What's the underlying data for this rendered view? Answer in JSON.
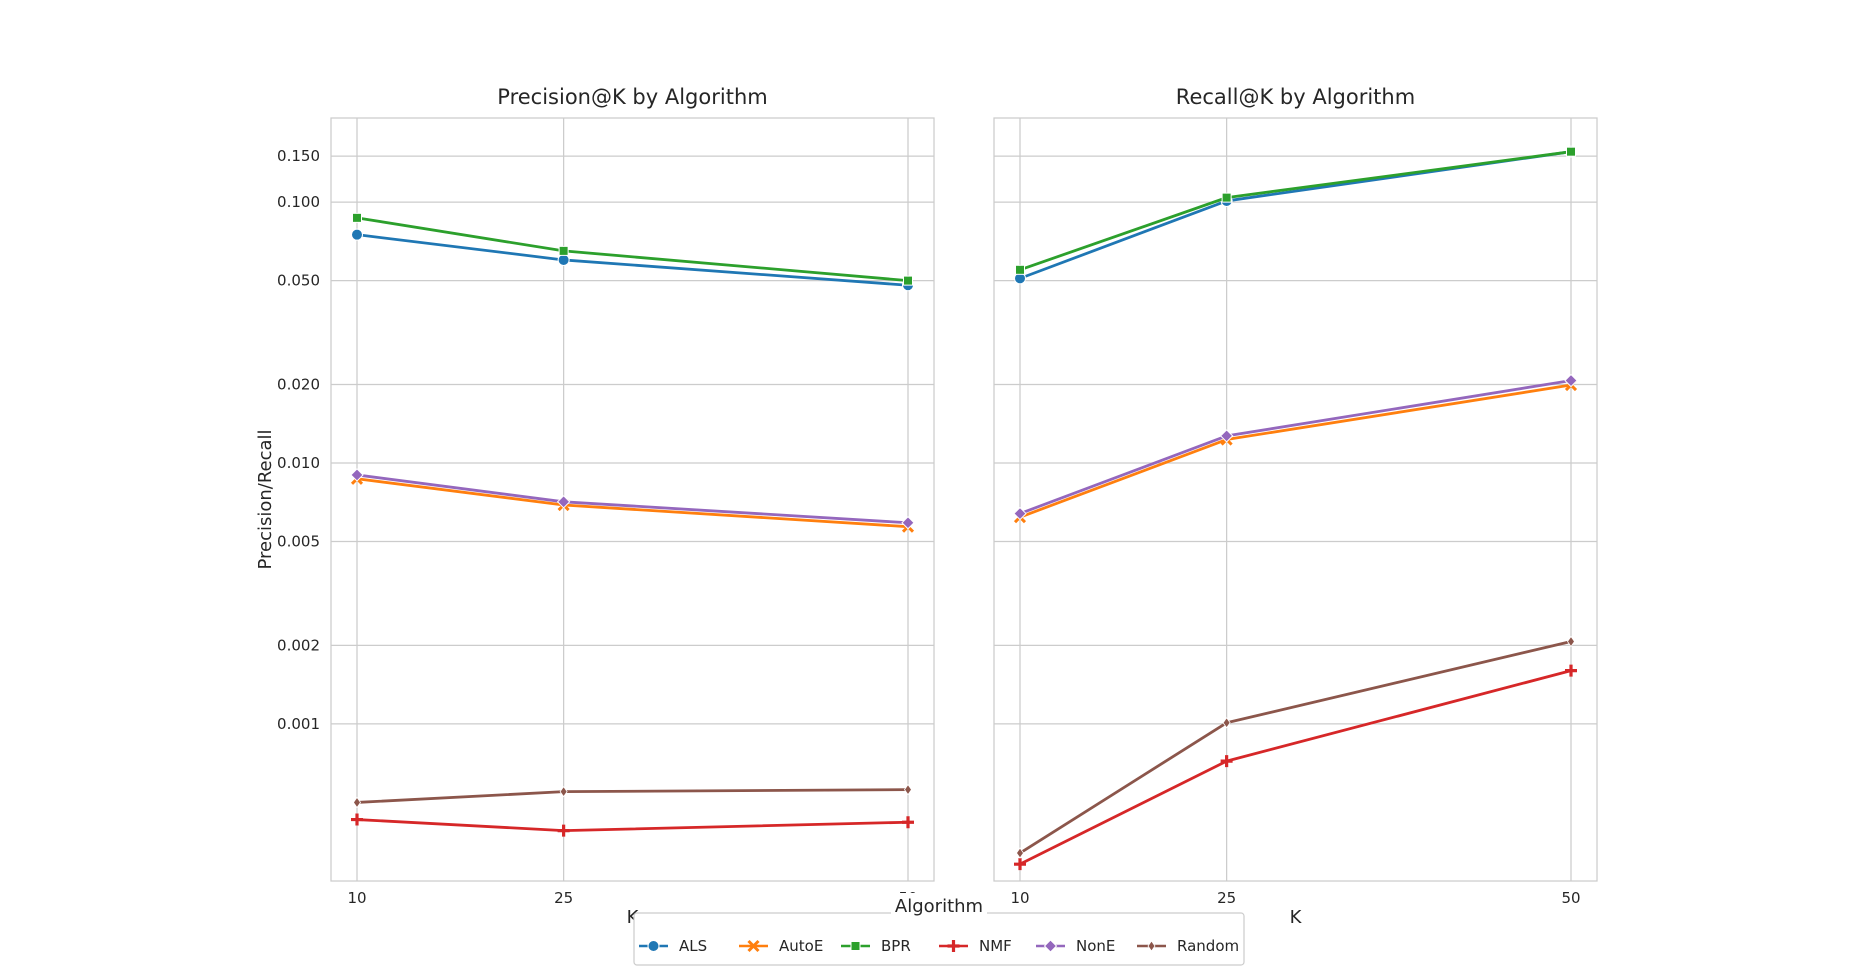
{
  "chart_data": [
    {
      "type": "line",
      "title": "Precision@K by Algorithm",
      "xlabel": "K",
      "ylabel": "Precision/Recall",
      "yscale": "log",
      "x": [
        10,
        25,
        50
      ],
      "x_tick_labels": [
        "10",
        "25",
        "50"
      ],
      "y_tick_values": [
        0.001,
        0.002,
        0.005,
        0.01,
        0.02,
        0.05,
        0.1,
        0.15
      ],
      "y_tick_labels": [
        "0.001",
        "0.002",
        "0.005",
        "0.010",
        "0.020",
        "0.050",
        "0.100",
        "0.150"
      ],
      "ylim": [
        0.00025,
        0.21
      ],
      "grid": true,
      "series": [
        {
          "name": "ALS",
          "color": "#1f77b4",
          "marker": "circle",
          "values": [
            0.075,
            0.06,
            0.048
          ]
        },
        {
          "name": "AutoE",
          "color": "#ff7f0e",
          "marker": "x",
          "values": [
            0.0087,
            0.0069,
            0.0057
          ]
        },
        {
          "name": "BPR",
          "color": "#2ca02c",
          "marker": "square",
          "values": [
            0.087,
            0.065,
            0.05
          ]
        },
        {
          "name": "NMF",
          "color": "#d62728",
          "marker": "plus",
          "values": [
            0.00043,
            0.00039,
            0.00042
          ]
        },
        {
          "name": "NonE",
          "color": "#9467bd",
          "marker": "diamond",
          "values": [
            0.009,
            0.0071,
            0.0059
          ]
        },
        {
          "name": "Random",
          "color": "#8c564b",
          "marker": "thin-diamond",
          "values": [
            0.0005,
            0.00055,
            0.00056
          ]
        }
      ]
    },
    {
      "type": "line",
      "title": "Recall@K by Algorithm",
      "xlabel": "K",
      "ylabel": "",
      "yscale": "log",
      "x": [
        10,
        25,
        50
      ],
      "x_tick_labels": [
        "10",
        "25",
        "50"
      ],
      "y_tick_values": [
        0.001,
        0.002,
        0.005,
        0.01,
        0.02,
        0.05,
        0.1,
        0.15
      ],
      "y_tick_labels": [],
      "ylim": [
        0.00025,
        0.21
      ],
      "grid": true,
      "series": [
        {
          "name": "ALS",
          "color": "#1f77b4",
          "marker": "circle",
          "values": [
            0.051,
            0.101,
            0.156
          ]
        },
        {
          "name": "AutoE",
          "color": "#ff7f0e",
          "marker": "x",
          "values": [
            0.0062,
            0.0123,
            0.0199
          ]
        },
        {
          "name": "BPR",
          "color": "#2ca02c",
          "marker": "square",
          "values": [
            0.055,
            0.104,
            0.156
          ]
        },
        {
          "name": "NMF",
          "color": "#d62728",
          "marker": "plus",
          "values": [
            0.00029,
            0.00072,
            0.0016
          ]
        },
        {
          "name": "NonE",
          "color": "#9467bd",
          "marker": "diamond",
          "values": [
            0.0064,
            0.0127,
            0.0207
          ]
        },
        {
          "name": "Random",
          "color": "#8c564b",
          "marker": "thin-diamond",
          "values": [
            0.00032,
            0.00101,
            0.00207
          ]
        }
      ]
    }
  ],
  "legend": {
    "title": "Algorithm",
    "placement": "bottom-center",
    "items": [
      "ALS",
      "AutoE",
      "BPR",
      "NMF",
      "NonE",
      "Random"
    ]
  }
}
